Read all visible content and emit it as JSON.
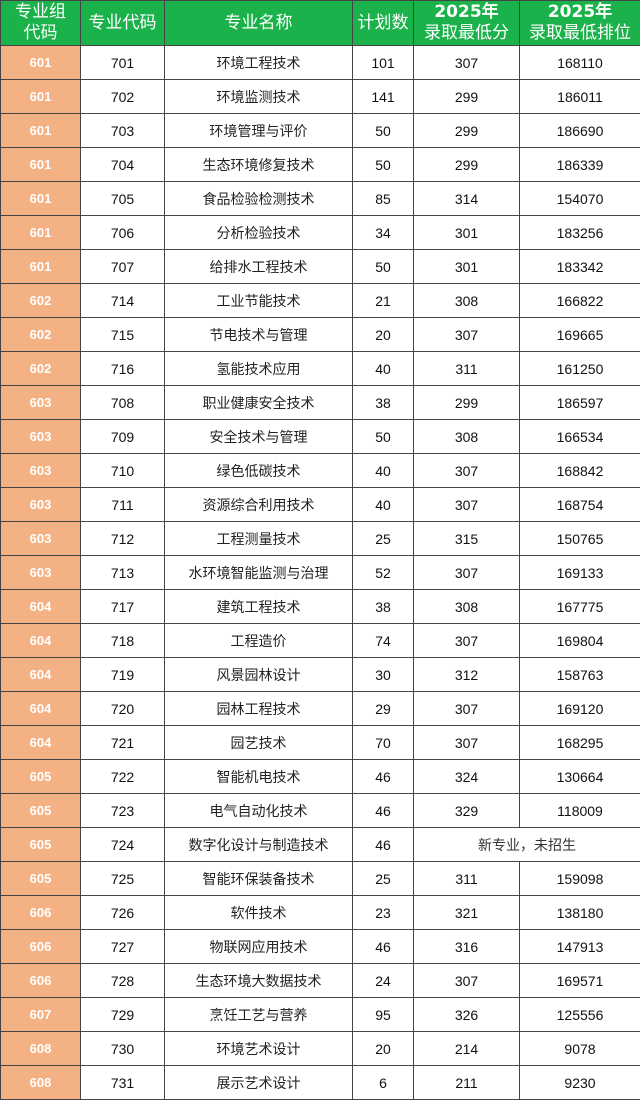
{
  "colors": {
    "header_bg": "#1cb24b",
    "group_bg": "#f4b183"
  },
  "headers": {
    "group_code": [
      "专业组",
      "代码"
    ],
    "major_code": "专业代码",
    "major_name": "专业名称",
    "plan": "计划数",
    "min_score": [
      "2025年",
      "录取最低分"
    ],
    "min_rank": [
      "2025年",
      "录取最低排位"
    ]
  },
  "rows": [
    [
      "601",
      "701",
      "环境工程技术",
      "101",
      "307",
      "168110"
    ],
    [
      "601",
      "702",
      "环境监测技术",
      "141",
      "299",
      "186011"
    ],
    [
      "601",
      "703",
      "环境管理与评价",
      "50",
      "299",
      "186690"
    ],
    [
      "601",
      "704",
      "生态环境修复技术",
      "50",
      "299",
      "186339"
    ],
    [
      "601",
      "705",
      "食品检验检测技术",
      "85",
      "314",
      "154070"
    ],
    [
      "601",
      "706",
      "分析检验技术",
      "34",
      "301",
      "183256"
    ],
    [
      "601",
      "707",
      "给排水工程技术",
      "50",
      "301",
      "183342"
    ],
    [
      "602",
      "714",
      "工业节能技术",
      "21",
      "308",
      "166822"
    ],
    [
      "602",
      "715",
      "节电技术与管理",
      "20",
      "307",
      "169665"
    ],
    [
      "602",
      "716",
      "氢能技术应用",
      "40",
      "311",
      "161250"
    ],
    [
      "603",
      "708",
      "职业健康安全技术",
      "38",
      "299",
      "186597"
    ],
    [
      "603",
      "709",
      "安全技术与管理",
      "50",
      "308",
      "166534"
    ],
    [
      "603",
      "710",
      "绿色低碳技术",
      "40",
      "307",
      "168842"
    ],
    [
      "603",
      "711",
      "资源综合利用技术",
      "40",
      "307",
      "168754"
    ],
    [
      "603",
      "712",
      "工程测量技术",
      "25",
      "315",
      "150765"
    ],
    [
      "603",
      "713",
      "水环境智能监测与治理",
      "52",
      "307",
      "169133"
    ],
    [
      "604",
      "717",
      "建筑工程技术",
      "38",
      "308",
      "167775"
    ],
    [
      "604",
      "718",
      "工程造价",
      "74",
      "307",
      "169804"
    ],
    [
      "604",
      "719",
      "风景园林设计",
      "30",
      "312",
      "158763"
    ],
    [
      "604",
      "720",
      "园林工程技术",
      "29",
      "307",
      "169120"
    ],
    [
      "604",
      "721",
      "园艺技术",
      "70",
      "307",
      "168295"
    ],
    [
      "605",
      "722",
      "智能机电技术",
      "46",
      "324",
      "130664"
    ],
    [
      "605",
      "723",
      "电气自动化技术",
      "46",
      "329",
      "118009"
    ],
    [
      "605",
      "724",
      "数字化设计与制造技术",
      "46",
      "新专业，未招生",
      null
    ],
    [
      "605",
      "725",
      "智能环保装备技术",
      "25",
      "311",
      "159098"
    ],
    [
      "606",
      "726",
      "软件技术",
      "23",
      "321",
      "138180"
    ],
    [
      "606",
      "727",
      "物联网应用技术",
      "46",
      "316",
      "147913"
    ],
    [
      "606",
      "728",
      "生态环境大数据技术",
      "24",
      "307",
      "169571"
    ],
    [
      "607",
      "729",
      "烹饪工艺与营养",
      "95",
      "326",
      "125556"
    ],
    [
      "608",
      "730",
      "环境艺术设计",
      "20",
      "214",
      "9078"
    ],
    [
      "608",
      "731",
      "展示艺术设计",
      "6",
      "211",
      "9230"
    ]
  ]
}
